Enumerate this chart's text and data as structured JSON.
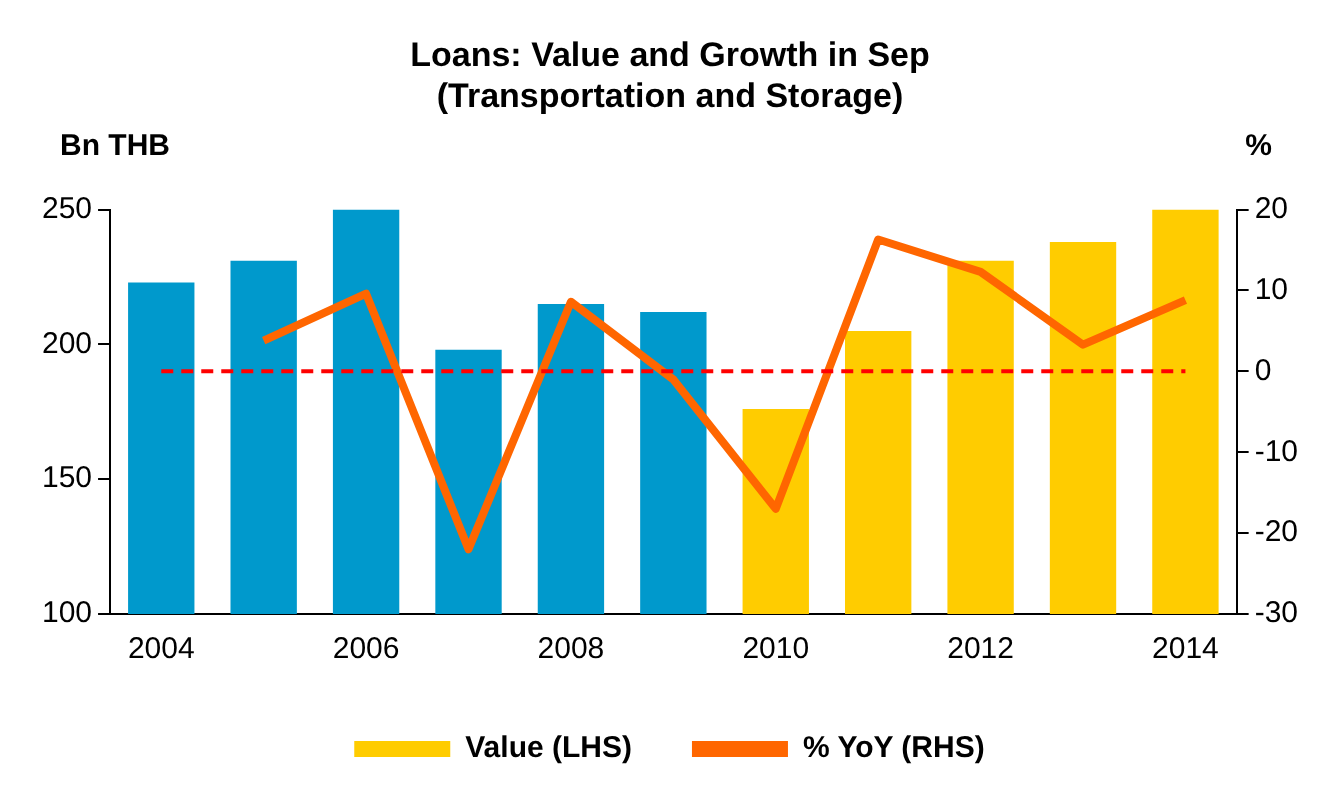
{
  "chart_data": {
    "type": "bar",
    "title": "Loans: Value and Growth in Sep\n(Transportation and Storage)",
    "ylabel": "Bn THB",
    "y2label": "%",
    "categories": [
      "2004",
      null,
      "2006",
      null,
      "2008",
      null,
      "2010",
      null,
      "2012",
      null,
      "2014"
    ],
    "series": [
      {
        "name": "Value (LHS)",
        "color": "#ffcc00",
        "colors": [
          "#0099cc",
          "#0099cc",
          "#0099cc",
          "#0099cc",
          "#0099cc",
          "#0099cc",
          "#ffcc00",
          "#ffcc00",
          "#ffcc00",
          "#ffcc00",
          "#ffcc00"
        ],
        "values": [
          223,
          231,
          250,
          198,
          215,
          212,
          176,
          205,
          231,
          238,
          250
        ]
      },
      {
        "name": "% YoY (RHS)",
        "type": "line",
        "axis": "y2",
        "color": "#ff6600",
        "values": [
          null,
          3.8,
          9.6,
          -22,
          8.6,
          -1,
          -17,
          16.3,
          12.3,
          3.3,
          8.8
        ]
      }
    ],
    "ylim": [
      100,
      250
    ],
    "yticks": [
      100,
      150,
      200,
      250
    ],
    "y2lim": [
      -30,
      20
    ],
    "y2ticks": [
      -30,
      -20,
      -10,
      0,
      10,
      20
    ],
    "ref_lines": [
      {
        "axis": "y2",
        "value": 0,
        "color": "#ff0000",
        "line_style": "dashed"
      }
    ],
    "grid": false,
    "legend": "bottom",
    "marker": "none"
  }
}
